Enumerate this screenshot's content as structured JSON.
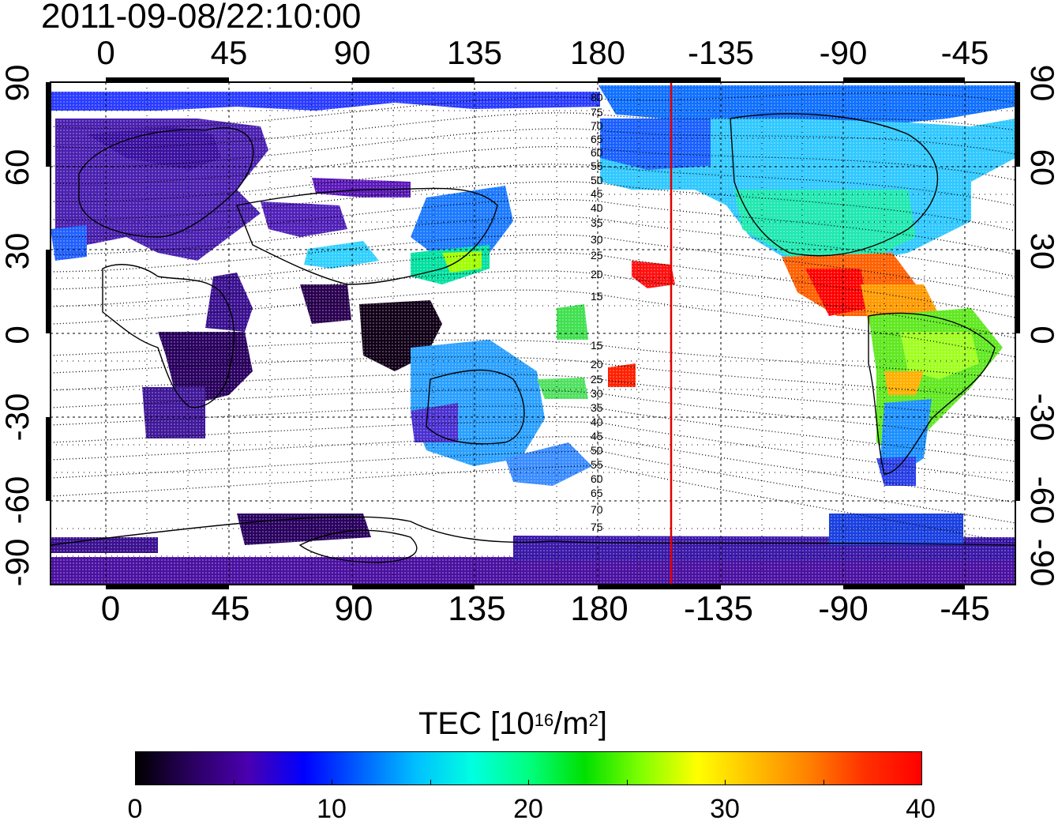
{
  "timestamp": "2011-09-08/22:10:00",
  "map": {
    "lon_ticks_top": [
      "0",
      "45",
      "90",
      "135",
      "180",
      "-135",
      "-90",
      "-45"
    ],
    "lon_ticks_bottom": [
      "0",
      "45",
      "90",
      "135",
      "180",
      "-135",
      "-90",
      "-45"
    ],
    "lat_ticks_left": [
      "90",
      "60",
      "30",
      "0",
      "-30",
      "-60",
      "-90"
    ],
    "lat_ticks_right": [
      "90",
      "60",
      "30",
      "0",
      "-30",
      "-60",
      "-90"
    ],
    "magnetic_contour_labels": [
      "80",
      "75",
      "70",
      "65",
      "60",
      "55",
      "50",
      "45",
      "40",
      "35",
      "30",
      "25",
      "20",
      "15",
      "15",
      "20",
      "25",
      "30",
      "35",
      "40",
      "45",
      "50",
      "55",
      "60",
      "65",
      "70",
      "75"
    ],
    "terminator_line_color": "#e00000"
  },
  "colorbar": {
    "title_main": "TEC  [10",
    "title_exp": "16",
    "title_unit": "/m",
    "title_unit_exp": "2",
    "title_close": "]",
    "ticks": [
      "0",
      "10",
      "20",
      "30",
      "40"
    ],
    "range": [
      0,
      40
    ],
    "colors": [
      "#000000",
      "#2a0060",
      "#4a00b0",
      "#0000ff",
      "#0060ff",
      "#00c0ff",
      "#00ffe0",
      "#00ff80",
      "#00e000",
      "#80ff00",
      "#ffff00",
      "#ffc000",
      "#ff8000",
      "#ff3000",
      "#ff0000"
    ]
  }
}
